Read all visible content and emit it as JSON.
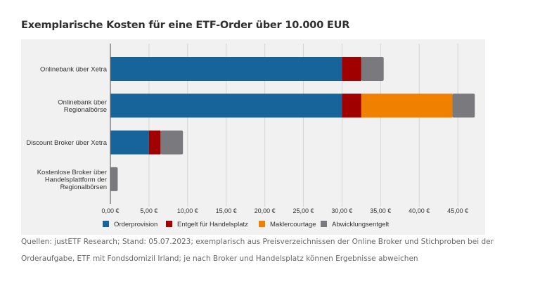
{
  "title": "Exemplarische Kosten für eine ETF-Order über 10.000 EUR",
  "source_line1": "Quellen: justETF Research; Stand: 05.07.2023; exemplarisch aus Preisverzeichnissen der Online Broker und Stichproben bei der",
  "source_line2": "Orderaufgabe, ETF mit Fondsdomizil Irland; je nach Broker und Handelsplatz können Ergebnisse abweichen",
  "chart_data": {
    "type": "bar",
    "orientation": "horizontal",
    "stacked": true,
    "title": "Exemplarische Kosten für eine ETF-Order über 10.000 EUR",
    "xlabel": "",
    "ylabel": "",
    "categories": [
      [
        "Onlinebank über Xetra"
      ],
      [
        "Onlinebank über",
        "Regionalbörse"
      ],
      [
        "Discount Broker über Xetra"
      ],
      [
        "Kostenlose Broker über",
        "Handelsplattform der",
        "Regionalbörsen"
      ]
    ],
    "series": [
      {
        "name": "Orderprovision",
        "color": "#17649a",
        "values": [
          30.0,
          30.0,
          5.0,
          0
        ]
      },
      {
        "name": "Entgelt für Handelsplatz",
        "color": "#a00000",
        "values": [
          2.5,
          2.5,
          1.5,
          0
        ]
      },
      {
        "name": "Maklercourtage",
        "color": "#f08000",
        "values": [
          0,
          11.8,
          0,
          0
        ]
      },
      {
        "name": "Abwicklungsentgelt",
        "color": "#7a7a7e",
        "values": [
          2.9,
          2.9,
          2.9,
          0.95
        ]
      }
    ],
    "xlim": [
      0,
      47.5
    ],
    "xticks": [
      0,
      5,
      10,
      15,
      20,
      25,
      30,
      35,
      40,
      45
    ],
    "xtick_labels": [
      "0,00 €",
      "5,00 €",
      "10,00 €",
      "15,00 €",
      "20,00 €",
      "25,00 €",
      "30,00 €",
      "35,00 €",
      "40,00 €",
      "45,00 €"
    ],
    "grid": true,
    "legend": "bottom"
  }
}
